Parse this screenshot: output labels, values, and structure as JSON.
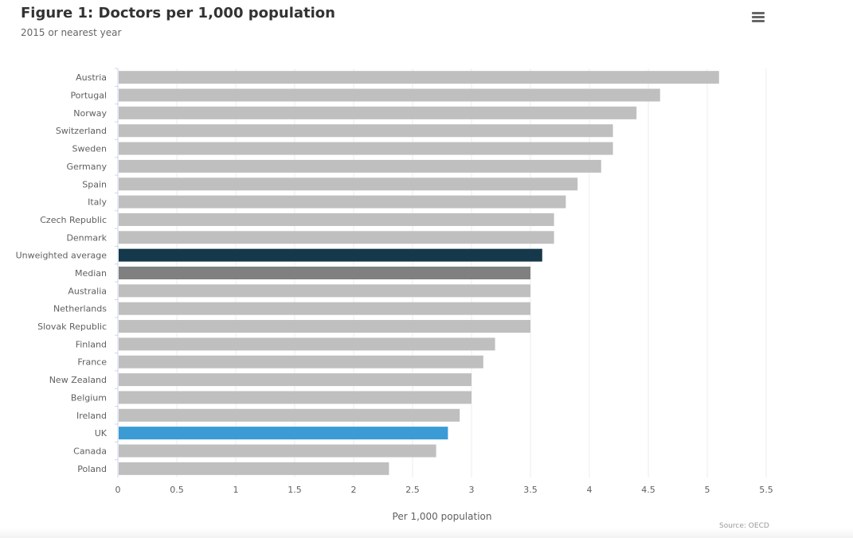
{
  "chart_data": {
    "type": "bar",
    "orientation": "horizontal",
    "title": "Figure 1: Doctors per 1,000 population",
    "subtitle": "2015 or nearest year",
    "xlabel": "Per 1,000 population",
    "xlim": [
      0,
      5.5
    ],
    "xticks": [
      "0",
      "0.5",
      "1",
      "1.5",
      "2",
      "2.5",
      "3",
      "3.5",
      "4",
      "4.5",
      "5",
      "5.5"
    ],
    "grid": true,
    "legend": false,
    "credits": "Source: OECD",
    "categories": [
      "Austria",
      "Portugal",
      "Norway",
      "Switzerland",
      "Sweden",
      "Germany",
      "Spain",
      "Italy",
      "Czech Republic",
      "Denmark",
      "Unweighted average",
      "Median",
      "Australia",
      "Netherlands",
      "Slovak Republic",
      "Finland",
      "France",
      "New Zealand",
      "Belgium",
      "Ireland",
      "UK",
      "Canada",
      "Poland"
    ],
    "values": [
      5.1,
      4.6,
      4.4,
      4.2,
      4.2,
      4.1,
      3.9,
      3.8,
      3.7,
      3.7,
      3.6,
      3.5,
      3.5,
      3.5,
      3.5,
      3.2,
      3.1,
      3.0,
      3.0,
      2.9,
      2.8,
      2.7,
      2.3
    ],
    "colors": {
      "default": "#bfbfbf",
      "Unweighted average": "#15384a",
      "Median": "#808080",
      "UK": "#3a9bd5"
    }
  },
  "ui": {
    "menu_icon": "hamburger-menu-icon"
  }
}
